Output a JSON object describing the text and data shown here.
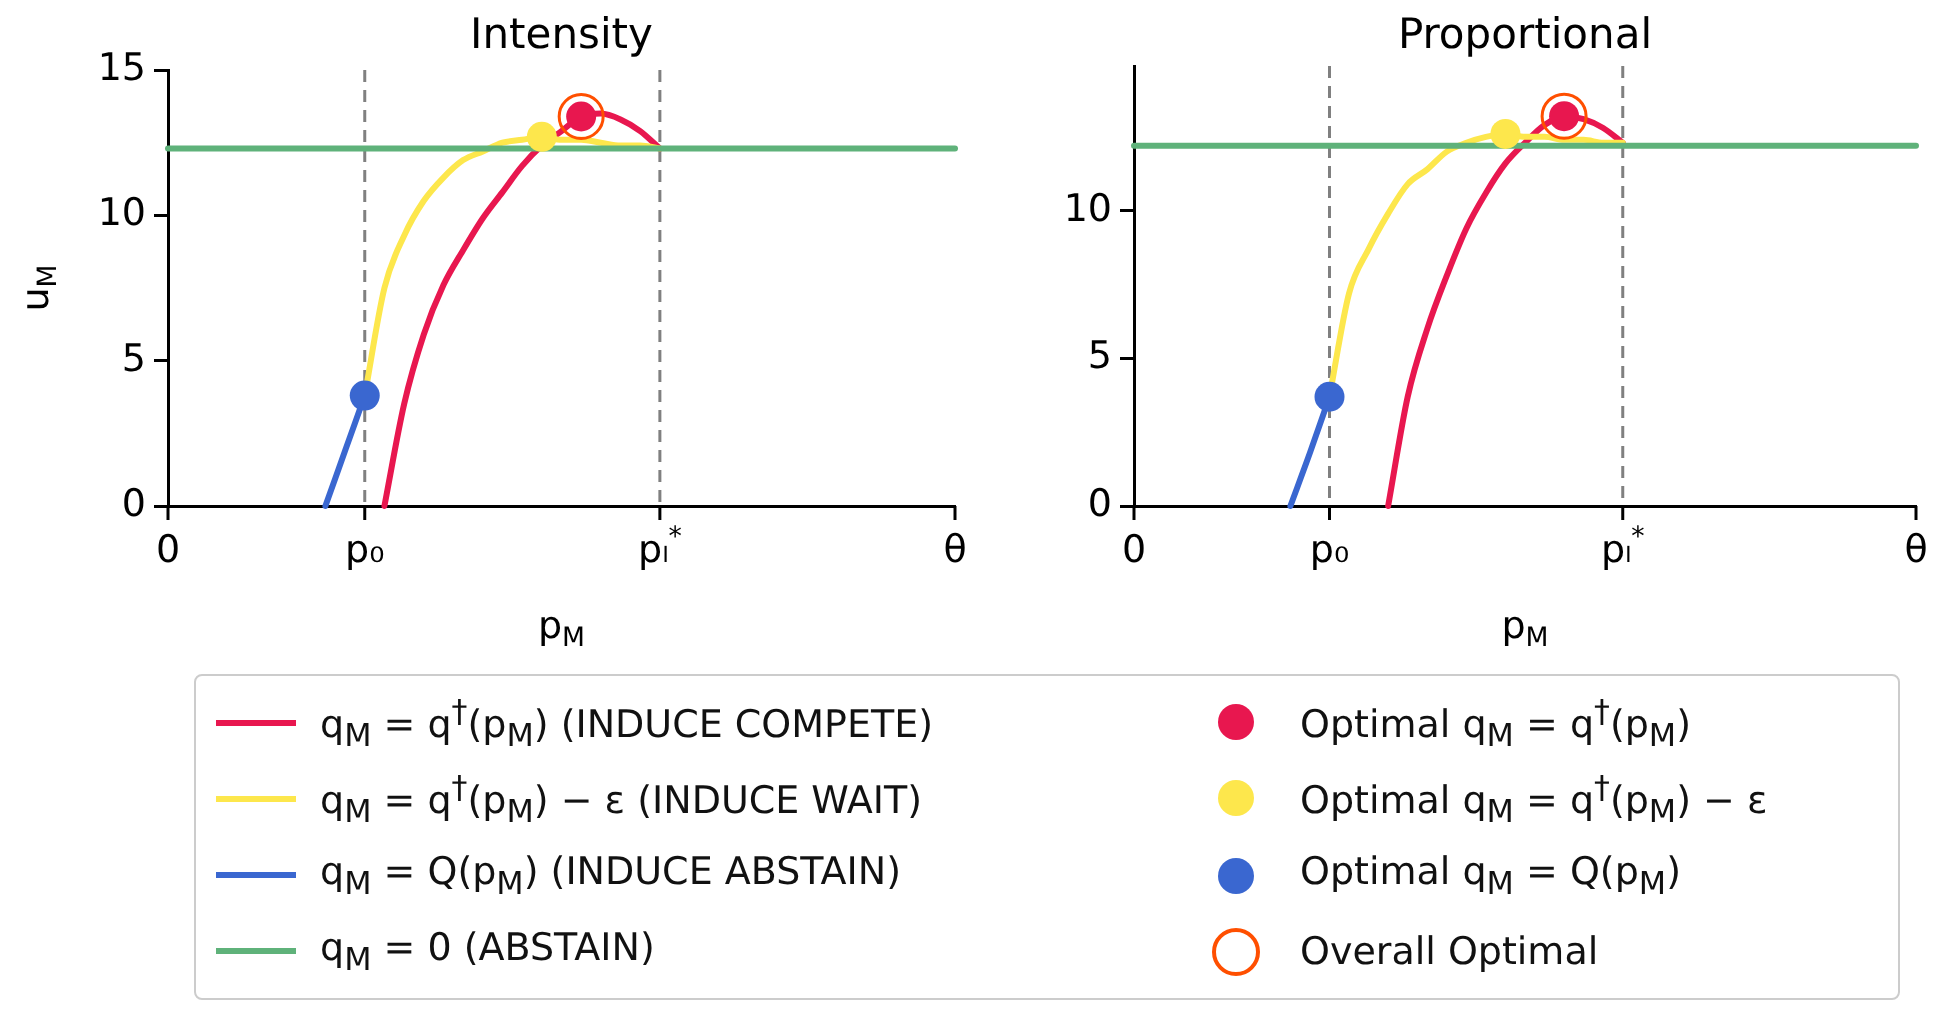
{
  "chart_data": [
    {
      "type": "line",
      "title": "Intensity",
      "xlabel": "p$_{M}$",
      "ylabel": "u$_{M}$",
      "categories": [
        "0",
        null,
        null,
        null,
        null,
        null,
        null,
        null,
        null,
        null,
        "p₀",
        null,
        null,
        null,
        null,
        null,
        null,
        null,
        null,
        null,
        null,
        null,
        null,
        null,
        null,
        "pₗ$^{*}$",
        null,
        null,
        null,
        null,
        null,
        null,
        null,
        null,
        null,
        null,
        null,
        null,
        null,
        null,
        "θ"
      ],
      "ylim": [
        0,
        15
      ],
      "yticks": [
        0,
        5,
        10,
        15
      ],
      "grid": false,
      "legend": "bottom",
      "ref_lines": [
        {
          "axis": "x",
          "value": "p₀",
          "color": "#808080",
          "line_style": "dashed"
        },
        {
          "axis": "x",
          "value": "pₗ$^{*}$",
          "color": "#808080",
          "line_style": "dashed"
        }
      ],
      "series": [
        {
          "name": "q$_{M}$ = q$^{†}$(p$_{M}$) (INDUCE COMPETE)",
          "type": "line",
          "color": "#e8174f",
          "values": [
            null,
            null,
            null,
            null,
            null,
            null,
            null,
            null,
            null,
            null,
            null,
            0,
            3.5,
            5.9,
            7.6,
            8.8,
            9.9,
            10.8,
            11.7,
            12.4,
            12.9,
            13.4,
            13.5,
            13.3,
            12.9,
            12.3,
            null,
            null,
            null,
            null,
            null,
            null,
            null,
            null,
            null,
            null,
            null,
            null,
            null,
            null,
            null
          ]
        },
        {
          "name": "q$_{M}$ = q$^{†}$(p$_{M}$) − ε (INDUCE WAIT)",
          "type": "line",
          "color": "#fde74c",
          "values": [
            null,
            null,
            null,
            null,
            null,
            null,
            null,
            null,
            null,
            null,
            3.8,
            7.5,
            9.3,
            10.5,
            11.3,
            11.9,
            12.2,
            12.5,
            12.6,
            12.7,
            12.6,
            12.6,
            12.5,
            12.4,
            12.4,
            12.3,
            null,
            null,
            null,
            null,
            null,
            null,
            null,
            null,
            null,
            null,
            null,
            null,
            null,
            null,
            null
          ]
        },
        {
          "name": "q$_{M}$ = Q(p$_{M}$) (INDUCE ABSTAIN)",
          "type": "line",
          "color": "#3a67d0",
          "values": [
            null,
            null,
            null,
            null,
            null,
            null,
            null,
            null,
            0,
            1.9,
            3.8,
            null,
            null,
            null,
            null,
            null,
            null,
            null,
            null,
            null,
            null,
            null,
            null,
            null,
            null,
            null,
            null,
            null,
            null,
            null,
            null,
            null,
            null,
            null,
            null,
            null,
            null,
            null,
            null,
            null,
            null
          ]
        },
        {
          "name": "q$_{M}$ = 0 (ABSTAIN)",
          "type": "line",
          "color": "#5fb27a",
          "values": [
            12.3,
            12.3,
            12.3,
            12.3,
            12.3,
            12.3,
            12.3,
            12.3,
            12.3,
            12.3,
            12.3,
            12.3,
            12.3,
            12.3,
            12.3,
            12.3,
            12.3,
            12.3,
            12.3,
            12.3,
            12.3,
            12.3,
            12.3,
            12.3,
            12.3,
            12.3,
            12.3,
            12.3,
            12.3,
            12.3,
            12.3,
            12.3,
            12.3,
            12.3,
            12.3,
            12.3,
            12.3,
            12.3,
            12.3,
            12.3,
            12.3
          ]
        },
        {
          "name": "Optimal q$_{M}$ = q$^{†}$(p$_{M}$)",
          "type": "scatter",
          "marker": "circle",
          "color": "#e8174f",
          "values": [
            null,
            null,
            null,
            null,
            null,
            null,
            null,
            null,
            null,
            null,
            null,
            null,
            null,
            null,
            null,
            null,
            null,
            null,
            null,
            null,
            null,
            13.4,
            null,
            null,
            null,
            null,
            null,
            null,
            null,
            null,
            null,
            null,
            null,
            null,
            null,
            null,
            null,
            null,
            null,
            null,
            null
          ]
        },
        {
          "name": "Optimal q$_{M}$ = q$^{†}$(p$_{M}$) − ε",
          "type": "scatter",
          "marker": "circle",
          "color": "#fde74c",
          "values": [
            null,
            null,
            null,
            null,
            null,
            null,
            null,
            null,
            null,
            null,
            null,
            null,
            null,
            null,
            null,
            null,
            null,
            null,
            null,
            12.7,
            null,
            null,
            null,
            null,
            null,
            null,
            null,
            null,
            null,
            null,
            null,
            null,
            null,
            null,
            null,
            null,
            null,
            null,
            null,
            null,
            null
          ]
        },
        {
          "name": "Optimal q$_{M}$ = Q(p$_{M}$)",
          "type": "scatter",
          "marker": "circle",
          "color": "#3a67d0",
          "values": [
            null,
            null,
            null,
            null,
            null,
            null,
            null,
            null,
            null,
            null,
            3.8,
            null,
            null,
            null,
            null,
            null,
            null,
            null,
            null,
            null,
            null,
            null,
            null,
            null,
            null,
            null,
            null,
            null,
            null,
            null,
            null,
            null,
            null,
            null,
            null,
            null,
            null,
            null,
            null,
            null,
            null
          ]
        },
        {
          "name": "Overall Optimal",
          "type": "scatter",
          "marker": "circle",
          "color": "#ff4f00",
          "values": [
            null,
            null,
            null,
            null,
            null,
            null,
            null,
            null,
            null,
            null,
            null,
            null,
            null,
            null,
            null,
            null,
            null,
            null,
            null,
            null,
            null,
            13.4,
            null,
            null,
            null,
            null,
            null,
            null,
            null,
            null,
            null,
            null,
            null,
            null,
            null,
            null,
            null,
            null,
            null,
            null,
            null
          ]
        }
      ]
    },
    {
      "type": "line",
      "title": "Proportional",
      "xlabel": "p$_{M}$",
      "categories": [
        "0",
        null,
        null,
        null,
        null,
        null,
        null,
        null,
        null,
        null,
        "p₀",
        null,
        null,
        null,
        null,
        null,
        null,
        null,
        null,
        null,
        null,
        null,
        null,
        null,
        null,
        "pₗ$^{*}$",
        null,
        null,
        null,
        null,
        null,
        null,
        null,
        null,
        null,
        null,
        null,
        null,
        null,
        null,
        "θ"
      ],
      "ylim": [
        0,
        14.9
      ],
      "yticks": [
        0,
        5,
        10
      ],
      "grid": false,
      "ref_lines": [
        {
          "axis": "x",
          "value": "p₀",
          "color": "#808080",
          "line_style": "dashed"
        },
        {
          "axis": "x",
          "value": "pₗ$^{*}$",
          "color": "#808080",
          "line_style": "dashed"
        }
      ],
      "series": [
        {
          "type": "line",
          "color": "#e8174f",
          "values": [
            null,
            null,
            null,
            null,
            null,
            null,
            null,
            null,
            null,
            null,
            null,
            null,
            null,
            0,
            3.7,
            6.0,
            7.8,
            9.4,
            10.6,
            11.6,
            12.3,
            12.9,
            13.2,
            13.1,
            12.8,
            12.3,
            null,
            null,
            null,
            null,
            null,
            null,
            null,
            null,
            null,
            null,
            null,
            null,
            null,
            null,
            null
          ]
        },
        {
          "type": "line",
          "color": "#fde74c",
          "values": [
            null,
            null,
            null,
            null,
            null,
            null,
            null,
            null,
            null,
            null,
            3.7,
            7.2,
            8.7,
            9.9,
            10.9,
            11.4,
            12.0,
            12.3,
            12.5,
            12.6,
            12.5,
            12.5,
            12.4,
            12.4,
            12.3,
            12.3,
            null,
            null,
            null,
            null,
            null,
            null,
            null,
            null,
            null,
            null,
            null,
            null,
            null,
            null,
            null
          ]
        },
        {
          "type": "line",
          "color": "#3a67d0",
          "values": [
            null,
            null,
            null,
            null,
            null,
            null,
            null,
            null,
            0,
            1.8,
            3.7,
            null,
            null,
            null,
            null,
            null,
            null,
            null,
            null,
            null,
            null,
            null,
            null,
            null,
            null,
            null,
            null,
            null,
            null,
            null,
            null,
            null,
            null,
            null,
            null,
            null,
            null,
            null,
            null,
            null,
            null
          ]
        },
        {
          "type": "line",
          "color": "#5fb27a",
          "values": [
            12.2,
            12.2,
            12.2,
            12.2,
            12.2,
            12.2,
            12.2,
            12.2,
            12.2,
            12.2,
            12.2,
            12.2,
            12.2,
            12.2,
            12.2,
            12.2,
            12.2,
            12.2,
            12.2,
            12.2,
            12.2,
            12.2,
            12.2,
            12.2,
            12.2,
            12.2,
            12.2,
            12.2,
            12.2,
            12.2,
            12.2,
            12.2,
            12.2,
            12.2,
            12.2,
            12.2,
            12.2,
            12.2,
            12.2,
            12.2,
            12.2
          ]
        },
        {
          "type": "scatter",
          "marker": "circle",
          "color": "#e8174f",
          "values": [
            null,
            null,
            null,
            null,
            null,
            null,
            null,
            null,
            null,
            null,
            null,
            null,
            null,
            null,
            null,
            null,
            null,
            null,
            null,
            null,
            null,
            null,
            13.2,
            null,
            null,
            null,
            null,
            null,
            null,
            null,
            null,
            null,
            null,
            null,
            null,
            null,
            null,
            null,
            null,
            null,
            null
          ]
        },
        {
          "type": "scatter",
          "marker": "circle",
          "color": "#fde74c",
          "values": [
            null,
            null,
            null,
            null,
            null,
            null,
            null,
            null,
            null,
            null,
            null,
            null,
            null,
            null,
            null,
            null,
            null,
            null,
            null,
            12.6,
            null,
            null,
            null,
            null,
            null,
            null,
            null,
            null,
            null,
            null,
            null,
            null,
            null,
            null,
            null,
            null,
            null,
            null,
            null,
            null,
            null
          ]
        },
        {
          "type": "scatter",
          "marker": "circle",
          "color": "#3a67d0",
          "values": [
            null,
            null,
            null,
            null,
            null,
            null,
            null,
            null,
            null,
            null,
            3.7,
            null,
            null,
            null,
            null,
            null,
            null,
            null,
            null,
            null,
            null,
            null,
            null,
            null,
            null,
            null,
            null,
            null,
            null,
            null,
            null,
            null,
            null,
            null,
            null,
            null,
            null,
            null,
            null,
            null,
            null
          ]
        },
        {
          "type": "scatter",
          "marker": "circle",
          "color": "#ff4f00",
          "values": [
            null,
            null,
            null,
            null,
            null,
            null,
            null,
            null,
            null,
            null,
            null,
            null,
            null,
            null,
            null,
            null,
            null,
            null,
            null,
            null,
            null,
            null,
            13.2,
            null,
            null,
            null,
            null,
            null,
            null,
            null,
            null,
            null,
            null,
            null,
            null,
            null,
            null,
            null,
            null,
            null,
            null
          ]
        }
      ]
    }
  ]
}
